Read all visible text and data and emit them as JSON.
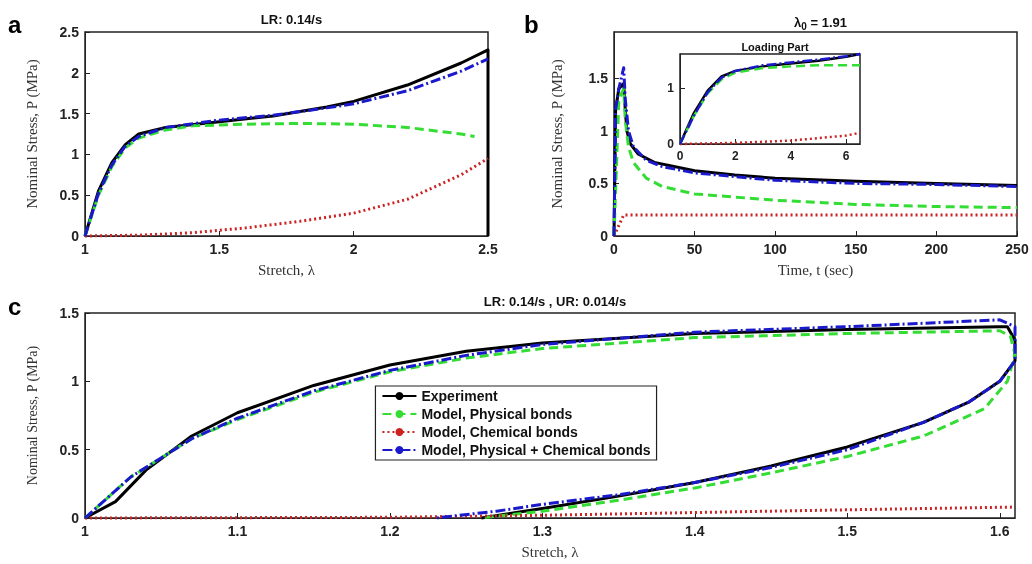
{
  "chart_data": [
    {
      "type": "line",
      "title": "LR: 0.14/s",
      "xlabel": "Stretch, λ",
      "ylabel": "Nominal Stress, P (MPa)",
      "annotations": [
        "a"
      ],
      "xlim": [
        1,
        2.5
      ],
      "xticks": [
        1,
        1.5,
        2,
        2.5
      ],
      "ylim": [
        0,
        2.5
      ],
      "yticks": [
        0,
        0.5,
        1,
        1.5,
        2,
        2.5
      ],
      "grid": false,
      "legend": false,
      "marker": "none",
      "series": [
        {
          "color": "#000000",
          "line_style": "solid",
          "x": [
            1,
            1.05,
            1.1,
            1.15,
            1.2,
            1.3,
            1.5,
            1.7,
            1.9,
            2.0,
            2.2,
            2.4,
            2.5,
            2.5
          ],
          "values": [
            0,
            0.55,
            0.9,
            1.12,
            1.25,
            1.33,
            1.4,
            1.47,
            1.58,
            1.65,
            1.85,
            2.12,
            2.28,
            0
          ]
        },
        {
          "color": "#33dd33",
          "line_style": "dashed",
          "x": [
            1,
            1.05,
            1.1,
            1.15,
            1.2,
            1.3,
            1.4,
            1.6,
            1.8,
            2.0,
            2.2,
            2.4,
            2.45
          ],
          "values": [
            0,
            0.5,
            0.85,
            1.08,
            1.2,
            1.3,
            1.35,
            1.37,
            1.38,
            1.37,
            1.33,
            1.25,
            1.22
          ]
        },
        {
          "color": "#cc2222",
          "line_style": "dotted",
          "x": [
            1,
            1.2,
            1.4,
            1.6,
            1.8,
            2.0,
            2.2,
            2.4,
            2.5
          ],
          "values": [
            0,
            0.01,
            0.04,
            0.1,
            0.18,
            0.28,
            0.45,
            0.75,
            0.95
          ]
        },
        {
          "color": "#1a1acc",
          "line_style": "dashdot",
          "x": [
            1,
            1.05,
            1.1,
            1.15,
            1.2,
            1.3,
            1.5,
            1.7,
            1.9,
            2.0,
            2.2,
            2.4,
            2.5
          ],
          "values": [
            0,
            0.52,
            0.87,
            1.1,
            1.22,
            1.33,
            1.42,
            1.48,
            1.57,
            1.62,
            1.78,
            2.02,
            2.17
          ]
        }
      ]
    },
    {
      "type": "line",
      "title": "λ$_{0}$ = 1.91",
      "xlabel": "Time, t (sec)",
      "ylabel": "Nominal Stress, P (MPa)",
      "annotations": [
        "b"
      ],
      "xlim": [
        0,
        250
      ],
      "xticks": [
        0,
        50,
        100,
        150,
        200,
        250
      ],
      "ylim": [
        0,
        1.94
      ],
      "yticks": [
        0,
        0.5,
        1,
        1.5
      ],
      "grid": false,
      "legend": false,
      "marker": "none",
      "series": [
        {
          "color": "#000000",
          "line_style": "solid",
          "x": [
            0,
            1,
            3,
            6,
            7,
            8,
            10,
            15,
            25,
            50,
            75,
            100,
            150,
            200,
            250
          ],
          "values": [
            0,
            1.2,
            1.4,
            1.45,
            1.2,
            1.0,
            0.88,
            0.78,
            0.7,
            0.62,
            0.58,
            0.55,
            0.52,
            0.5,
            0.48
          ]
        },
        {
          "color": "#33dd33",
          "line_style": "dashed",
          "x": [
            0,
            3,
            6,
            7,
            9,
            12,
            20,
            30,
            50,
            100,
            150,
            200,
            250
          ],
          "values": [
            0,
            1.3,
            1.4,
            1.1,
            0.85,
            0.7,
            0.55,
            0.47,
            0.4,
            0.34,
            0.3,
            0.28,
            0.27
          ]
        },
        {
          "color": "#cc2222",
          "line_style": "dotted",
          "x": [
            0,
            3,
            6,
            50,
            250
          ],
          "values": [
            0,
            0.1,
            0.2,
            0.2,
            0.2
          ]
        },
        {
          "color": "#1a1acc",
          "line_style": "dashdot",
          "x": [
            0,
            1,
            3,
            6,
            7,
            9,
            12,
            20,
            30,
            50,
            100,
            150,
            200,
            250
          ],
          "values": [
            0,
            1.2,
            1.4,
            1.6,
            1.3,
            1.0,
            0.85,
            0.72,
            0.66,
            0.6,
            0.53,
            0.5,
            0.49,
            0.47
          ]
        }
      ]
    },
    {
      "type": "line",
      "title": "Loading Part",
      "xlim": [
        0,
        6.5
      ],
      "xticks": [
        0,
        2,
        4,
        6
      ],
      "ylim": [
        0,
        1.6
      ],
      "yticks": [
        0,
        1
      ],
      "grid": false,
      "legend": false,
      "marker": "none",
      "series": [
        {
          "color": "#000000",
          "line_style": "solid",
          "x": [
            0,
            0.5,
            1,
            1.5,
            2,
            3,
            4,
            5,
            6,
            6.5
          ],
          "values": [
            0,
            0.55,
            0.95,
            1.2,
            1.3,
            1.38,
            1.43,
            1.48,
            1.55,
            1.6
          ]
        },
        {
          "color": "#33dd33",
          "line_style": "dashed",
          "x": [
            0,
            0.5,
            1,
            1.5,
            2,
            3,
            4,
            5,
            6.5
          ],
          "values": [
            0,
            0.5,
            0.9,
            1.15,
            1.27,
            1.35,
            1.38,
            1.4,
            1.4
          ]
        },
        {
          "color": "#cc2222",
          "line_style": "dotted",
          "x": [
            0,
            2,
            4,
            6,
            6.5
          ],
          "values": [
            0,
            0.02,
            0.06,
            0.15,
            0.2
          ]
        },
        {
          "color": "#1a1acc",
          "line_style": "dashdot",
          "x": [
            0,
            0.5,
            1,
            1.5,
            2,
            3,
            4,
            5,
            6,
            6.5
          ],
          "values": [
            0,
            0.5,
            0.92,
            1.18,
            1.3,
            1.4,
            1.45,
            1.5,
            1.56,
            1.6
          ]
        }
      ]
    },
    {
      "type": "line",
      "title": "LR: 0.14/s , UR: 0.014/s",
      "xlabel": "Stretch, λ",
      "ylabel": "Nominal Stress, P (MPa)",
      "annotations": [
        "c"
      ],
      "xlim": [
        1,
        1.61
      ],
      "xticks": [
        1,
        1.1,
        1.2,
        1.3,
        1.4,
        1.5,
        1.6
      ],
      "ylim": [
        0,
        1.5
      ],
      "yticks": [
        0,
        0.5,
        1,
        1.5
      ],
      "grid": false,
      "legend": "center",
      "marker": "none",
      "series": [
        {
          "name": "Experiment",
          "color": "#000000",
          "line_style": "solid",
          "x": [
            1,
            1.02,
            1.04,
            1.07,
            1.1,
            1.15,
            1.2,
            1.25,
            1.3,
            1.4,
            1.5,
            1.6,
            1.605,
            1.61,
            1.61,
            1.6,
            1.58,
            1.55,
            1.5,
            1.45,
            1.4,
            1.35,
            1.3,
            1.26
          ],
          "values": [
            0,
            0.12,
            0.35,
            0.6,
            0.77,
            0.97,
            1.12,
            1.22,
            1.28,
            1.35,
            1.38,
            1.4,
            1.4,
            1.3,
            1.15,
            1.0,
            0.85,
            0.7,
            0.52,
            0.38,
            0.26,
            0.16,
            0.07,
            0
          ]
        },
        {
          "name": "Model, Physical bonds",
          "color": "#33dd33",
          "line_style": "dashed",
          "x": [
            1,
            1.03,
            1.07,
            1.1,
            1.15,
            1.2,
            1.25,
            1.3,
            1.4,
            1.5,
            1.6,
            1.607,
            1.61,
            1.605,
            1.59,
            1.55,
            1.5,
            1.45,
            1.4,
            1.35,
            1.3,
            1.26
          ],
          "values": [
            0,
            0.3,
            0.58,
            0.72,
            0.92,
            1.07,
            1.17,
            1.24,
            1.32,
            1.35,
            1.37,
            1.33,
            1.2,
            1.0,
            0.8,
            0.6,
            0.45,
            0.33,
            0.22,
            0.13,
            0.05,
            0
          ]
        },
        {
          "name": "Model, Chemical bonds",
          "color": "#cc2222",
          "line_style": "dotted",
          "x": [
            1,
            1.2,
            1.3,
            1.4,
            1.5,
            1.61
          ],
          "values": [
            0,
            0.005,
            0.02,
            0.04,
            0.06,
            0.08
          ]
        },
        {
          "name": "Model, Physical + Chemical bonds",
          "color": "#1a1acc",
          "line_style": "dashdot",
          "x": [
            1,
            1.03,
            1.07,
            1.1,
            1.15,
            1.2,
            1.25,
            1.3,
            1.4,
            1.5,
            1.6,
            1.61,
            1.61,
            1.6,
            1.58,
            1.55,
            1.5,
            1.45,
            1.4,
            1.35,
            1.3,
            1.27,
            1.23
          ],
          "values": [
            0,
            0.3,
            0.58,
            0.73,
            0.93,
            1.08,
            1.19,
            1.27,
            1.36,
            1.4,
            1.45,
            1.4,
            1.15,
            1.0,
            0.85,
            0.7,
            0.5,
            0.37,
            0.26,
            0.17,
            0.1,
            0.05,
            0
          ]
        }
      ]
    }
  ]
}
